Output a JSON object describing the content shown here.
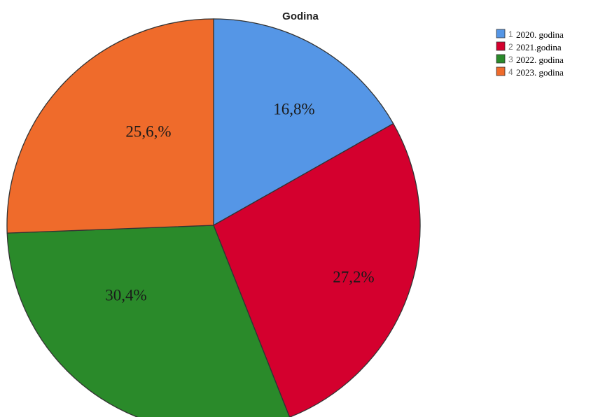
{
  "chart_data": {
    "type": "pie",
    "title": "Godina",
    "categories": [
      "2020. godina",
      "2021.godina",
      "2022. godina",
      "2023. godina"
    ],
    "legend_numbers": [
      "1",
      "2",
      "3",
      "4"
    ],
    "values": [
      16.8,
      27.2,
      30.4,
      25.6
    ],
    "data_labels": [
      "16,8%",
      "27,2%",
      "30,4%",
      "25,6,%"
    ],
    "colors": [
      "#5596e6",
      "#d4002e",
      "#2a8a2a",
      "#ef6b2b"
    ],
    "start_angle_deg": 0,
    "direction": "clockwise",
    "legend_position": "top-right"
  }
}
